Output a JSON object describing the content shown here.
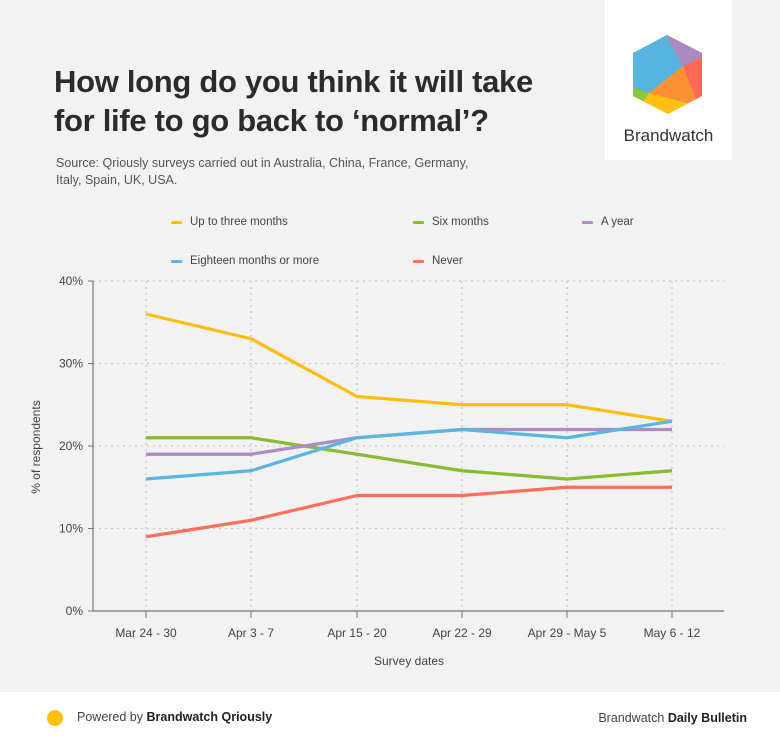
{
  "header": {
    "title_line1": "How long do you think it will take",
    "title_line2": "for life to go back to ‘normal’?",
    "subtitle_line1": "Source: Qriously surveys carried out in Australia, China, France, Germany,",
    "subtitle_line2": "Italy, Spain, UK, USA."
  },
  "logo": {
    "name": "Brandwatch",
    "icon": "hexagon-logo-icon",
    "colors": {
      "blue": "#56B4DE",
      "purple": "#A98BC1",
      "red": "#FF6B57",
      "orange": "#FA9134",
      "yellow": "#FFC012",
      "green": "#8CC63F"
    }
  },
  "chart_data": {
    "type": "line",
    "title": "How long do you think it will take for life to go back to ‘normal’?",
    "xlabel": "Survey dates",
    "ylabel": "% of respondents",
    "ylim": [
      0,
      40
    ],
    "yticks": [
      0,
      10,
      20,
      30,
      40
    ],
    "ytick_labels": [
      "0%",
      "10%",
      "20%",
      "30%",
      "40%"
    ],
    "grid": true,
    "legend_position": "top",
    "categories": [
      "Mar 24 - 30",
      "Apr 3 - 7",
      "Apr 15 - 20",
      "Apr 22 - 29",
      "Apr 29 - May 5",
      "May 6 - 12"
    ],
    "series": [
      {
        "name": "Up to three months",
        "color": "#FDBD10",
        "values": [
          36,
          33,
          26,
          25,
          25,
          23
        ]
      },
      {
        "name": "Six months",
        "color": "#86BC2F",
        "values": [
          21,
          21,
          19,
          17,
          16,
          17
        ]
      },
      {
        "name": "A year",
        "color": "#AD8CC4",
        "values": [
          19,
          19,
          21,
          22,
          22,
          22
        ]
      },
      {
        "name": "Eighteen months or more",
        "color": "#5BB5E0",
        "values": [
          16,
          17,
          21,
          22,
          21,
          23
        ]
      },
      {
        "name": "Never",
        "color": "#FF6F59",
        "values": [
          9,
          11,
          14,
          14,
          15,
          15
        ]
      }
    ]
  },
  "footer": {
    "dot_color": "#FFC012",
    "powered_by_prefix": "Powered by ",
    "powered_by_brand": "Brandwatch Qriously",
    "right_prefix": "Brandwatch ",
    "right_bold": "Daily Bulletin"
  }
}
